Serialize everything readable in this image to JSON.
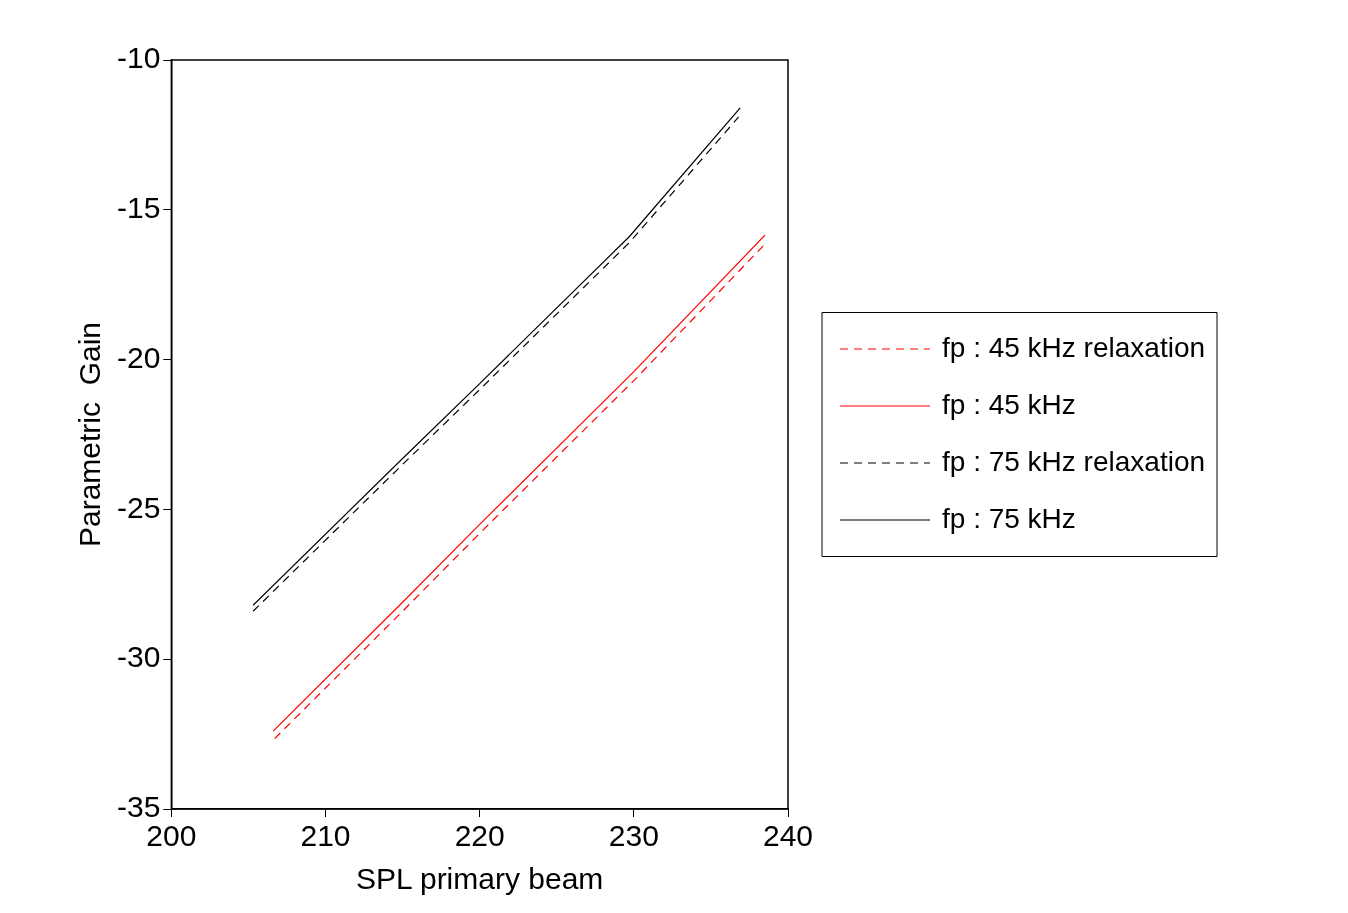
{
  "chart_data": {
    "type": "line",
    "xlabel": "SPL primary beam",
    "ylabel": "Parametric  Gain",
    "xlim": [
      200,
      240
    ],
    "xticks": [
      200,
      210,
      220,
      230,
      240
    ],
    "ylim": [
      -35,
      -10
    ],
    "yticks": [
      -35,
      -30,
      -25,
      -20,
      -15,
      -10
    ],
    "grid": false,
    "legend": "right",
    "marker": "none",
    "series": [
      {
        "name": "fp : 45 kHz relaxation",
        "color": "#ff0000",
        "line_style": "dashed",
        "x": [
          206.7,
          215,
          220,
          230,
          238.4
        ],
        "values": [
          -32.65,
          -28.4,
          -25.8,
          -20.7,
          -16.2
        ]
      },
      {
        "name": "fp : 45 kHz",
        "color": "#ff0000",
        "line_style": "solid",
        "x": [
          206.6,
          215,
          220,
          230,
          238.5
        ],
        "values": [
          -32.4,
          -28.1,
          -25.5,
          -20.4,
          -15.85
        ]
      },
      {
        "name": "fp : 75 kHz relaxation",
        "color": "#000000",
        "line_style": "dashed",
        "x": [
          205.3,
          215,
          220,
          229.7,
          236.8
        ],
        "values": [
          -28.4,
          -23.5,
          -21.0,
          -16.1,
          -11.9
        ]
      },
      {
        "name": "fp : 75 kHz",
        "color": "#000000",
        "line_style": "solid",
        "x": [
          205.3,
          215,
          220,
          229.7,
          236.9
        ],
        "values": [
          -28.2,
          -23.3,
          -20.8,
          -15.9,
          -11.6
        ]
      }
    ]
  }
}
